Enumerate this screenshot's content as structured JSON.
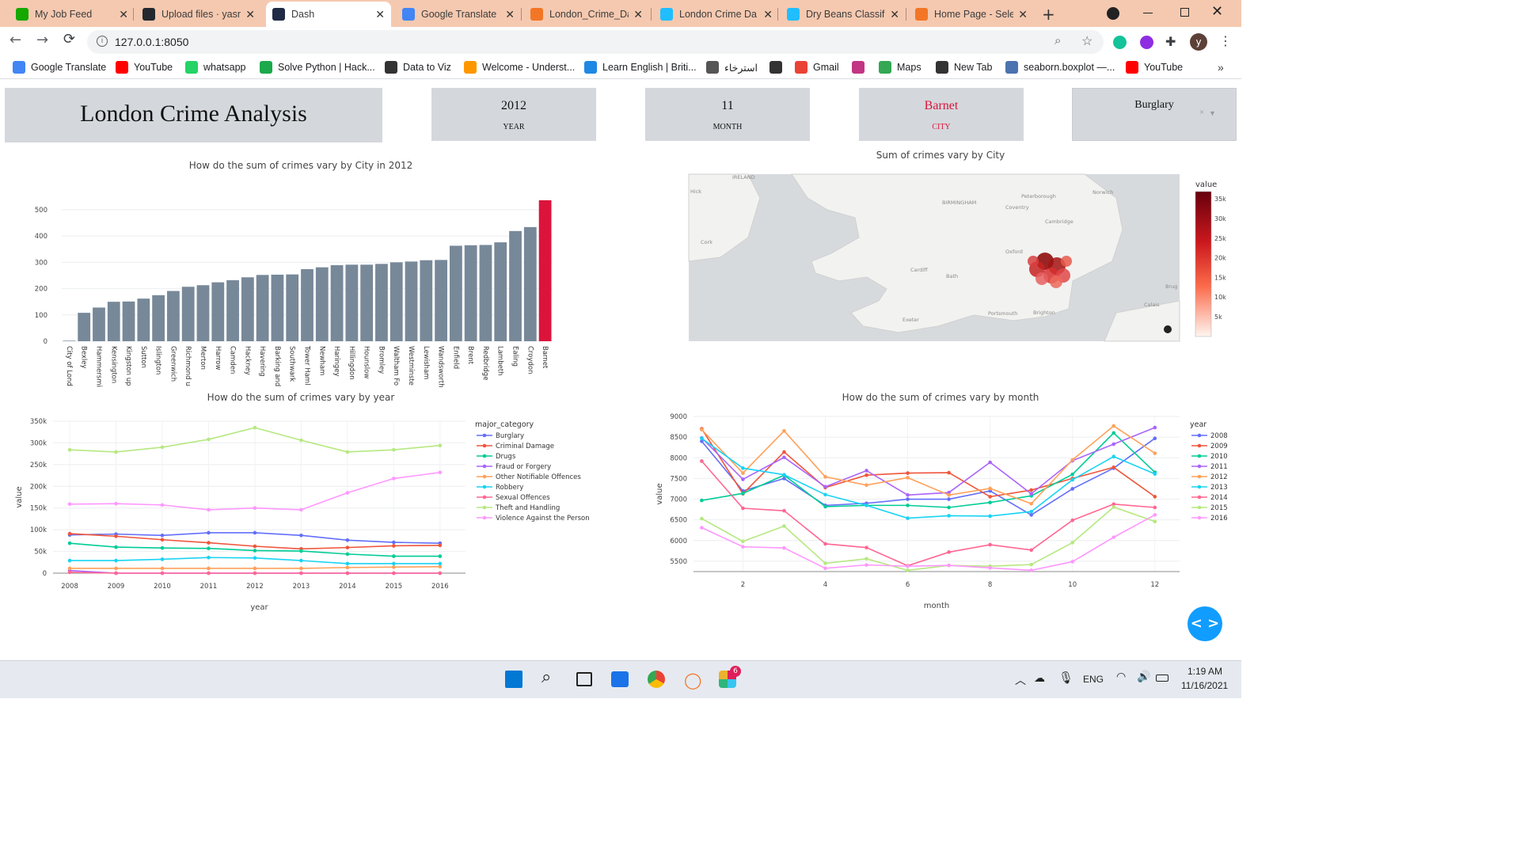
{
  "browser": {
    "tabs": [
      {
        "title": "My Job Feed",
        "icon": "upwork-icon",
        "color": "#14a800"
      },
      {
        "title": "Upload files · yasn",
        "icon": "github-icon",
        "color": "#24292f"
      },
      {
        "title": "Dash",
        "icon": "dash-icon",
        "color": "#1f2a44",
        "active": true
      },
      {
        "title": "Google Translate",
        "icon": "translate-icon",
        "color": "#4285f4"
      },
      {
        "title": "London_Crime_Da",
        "icon": "notebook-icon",
        "color": "#f37626"
      },
      {
        "title": "London Crime Da",
        "icon": "kaggle-icon",
        "color": "#20beff"
      },
      {
        "title": "Dry Beans Classifi",
        "icon": "kaggle-icon",
        "color": "#20beff"
      },
      {
        "title": "Home Page - Sele",
        "icon": "jupyter-icon",
        "color": "#f37626"
      }
    ],
    "url": "127.0.0.1:8050",
    "bookmarks": [
      {
        "label": "Google Translate",
        "color": "#4285f4"
      },
      {
        "label": "YouTube",
        "color": "#ff0000"
      },
      {
        "label": "whatsapp",
        "color": "#25d366"
      },
      {
        "label": "Solve Python | Hack...",
        "color": "#1ba94c"
      },
      {
        "label": "Data to Viz",
        "color": "#333333"
      },
      {
        "label": "Welcome - Underst...",
        "color": "#ff9800"
      },
      {
        "label": "Learn English | Briti...",
        "color": "#1e88e5"
      },
      {
        "label": "استرخاء",
        "color": "#555555"
      },
      {
        "label": "",
        "color": "#333333"
      },
      {
        "label": "Gmail",
        "color": "#ea4335"
      },
      {
        "label": "",
        "color": "#c13584"
      },
      {
        "label": "Maps",
        "color": "#34a853"
      },
      {
        "label": "New Tab",
        "color": "#333333"
      },
      {
        "label": "seaborn.boxplot —...",
        "color": "#4c72b0"
      },
      {
        "label": "YouTube",
        "color": "#ff0000"
      }
    ],
    "avatar_letter": "y"
  },
  "dashboard": {
    "title": "London Crime Analysis",
    "year_value": "2012",
    "year_label": "YEAR",
    "month_value": "11",
    "month_label": "MONTH",
    "city_value": "Barnet",
    "city_label": "CITY",
    "category_selected": "Burglary",
    "accent_color": "#dc143c"
  },
  "charts": {
    "bar_title": "How do the sum of crimes vary by City in 2012",
    "map_title": "Sum of crimes vary by City",
    "year_title": "How do the sum of crimes vary by year",
    "month_title": "How do the sum of crimes vary by month"
  },
  "chart_data": [
    {
      "type": "bar",
      "title": "How do the sum of crimes vary by City in 2012",
      "categories": [
        "City of Lond",
        "Bexley",
        "Hammersmi",
        "Kensington",
        "Kingston up",
        "Sutton",
        "Islington",
        "Greenwich",
        "Richmond u",
        "Merton",
        "Harrow",
        "Camden",
        "Hackney",
        "Havering",
        "Barking and",
        "Southwark",
        "Tower Haml",
        "Newham",
        "Haringey",
        "Hillingdon",
        "Hounslow",
        "Bromley",
        "Waltham Fo",
        "Westminste",
        "Lewisham",
        "Wandsworth",
        "Enfield",
        "Brent",
        "Redbridge",
        "Lambeth",
        "Ealing",
        "Croydon",
        "Barnet"
      ],
      "values": [
        2,
        108,
        128,
        150,
        151,
        162,
        175,
        191,
        207,
        213,
        224,
        232,
        243,
        252,
        253,
        254,
        274,
        281,
        289,
        291,
        291,
        294,
        300,
        303,
        308,
        309,
        363,
        365,
        366,
        376,
        419,
        434,
        536
      ],
      "highlight": "Barnet",
      "yticks": [
        0,
        100,
        200,
        300,
        400,
        500
      ],
      "ylim": [
        0,
        560
      ]
    },
    {
      "type": "line",
      "title": "How do the sum of crimes vary by year",
      "xlabel": "year",
      "ylabel": "value",
      "legend_title": "major_category",
      "x": [
        2008,
        2009,
        2010,
        2011,
        2012,
        2013,
        2014,
        2015,
        2016
      ],
      "yticks": [
        "0",
        "50k",
        "100k",
        "150k",
        "200k",
        "250k",
        "300k",
        "350k"
      ],
      "ylim": [
        0,
        350000
      ],
      "series": [
        {
          "name": "Burglary",
          "color": "#636efa",
          "values": [
            88000,
            90000,
            87000,
            93000,
            93000,
            87000,
            76000,
            71000,
            69000
          ]
        },
        {
          "name": "Criminal Damage",
          "color": "#ef553b",
          "values": [
            91000,
            85000,
            77000,
            70000,
            62000,
            56000,
            59000,
            63000,
            64000
          ]
        },
        {
          "name": "Drugs",
          "color": "#00cc96",
          "values": [
            69000,
            60000,
            58000,
            57000,
            52000,
            51000,
            44000,
            39000,
            39000
          ]
        },
        {
          "name": "Fraud or Forgery",
          "color": "#ab63fa",
          "values": [
            6000,
            0,
            0,
            0,
            0,
            0,
            0,
            0,
            0
          ]
        },
        {
          "name": "Other Notifiable Offences",
          "color": "#ffa15a",
          "values": [
            11000,
            11000,
            11000,
            11000,
            11000,
            11000,
            13000,
            14000,
            15000
          ]
        },
        {
          "name": "Robbery",
          "color": "#19d3f3",
          "values": [
            29000,
            29000,
            32000,
            36000,
            35000,
            29000,
            22000,
            22000,
            22000
          ]
        },
        {
          "name": "Sexual Offences",
          "color": "#ff6692",
          "values": [
            2000,
            0,
            0,
            0,
            0,
            0,
            0,
            0,
            0
          ]
        },
        {
          "name": "Theft and Handling",
          "color": "#b6e880",
          "values": [
            284000,
            279000,
            290000,
            308000,
            335000,
            306000,
            279000,
            284000,
            294000
          ]
        },
        {
          "name": "Violence Against the Person",
          "color": "#ff97ff",
          "values": [
            159000,
            160000,
            157000,
            146000,
            150000,
            146000,
            185000,
            218000,
            232000
          ]
        }
      ]
    },
    {
      "type": "line",
      "title": "How do the sum of crimes vary by month",
      "xlabel": "month",
      "ylabel": "value",
      "legend_title": "year",
      "x": [
        1,
        2,
        3,
        4,
        5,
        6,
        7,
        8,
        9,
        10,
        11,
        12
      ],
      "xticks": [
        2,
        4,
        6,
        8,
        10,
        12
      ],
      "yticks": [
        5500,
        6000,
        6500,
        7000,
        7500,
        8000,
        8500,
        9000
      ],
      "ylim": [
        5250,
        9000
      ],
      "series": [
        {
          "name": "2008",
          "color": "#636efa",
          "values": [
            8400,
            7200,
            7500,
            6850,
            6900,
            7000,
            7000,
            7200,
            6620,
            7250,
            7750,
            8470
          ]
        },
        {
          "name": "2009",
          "color": "#ef553b",
          "values": [
            8700,
            7130,
            8140,
            7280,
            7580,
            7630,
            7640,
            7060,
            7220,
            7500,
            7770,
            7060
          ]
        },
        {
          "name": "2010",
          "color": "#00cc96",
          "values": [
            6970,
            7140,
            7580,
            6820,
            6850,
            6850,
            6800,
            6920,
            7080,
            7600,
            8600,
            7650
          ]
        },
        {
          "name": "2011",
          "color": "#ab63fa",
          "values": [
            8480,
            7480,
            8010,
            7300,
            7690,
            7100,
            7160,
            7890,
            7130,
            7930,
            8330,
            8730
          ]
        },
        {
          "name": "2012",
          "color": "#ffa15a",
          "values": [
            8680,
            7630,
            8650,
            7540,
            7340,
            7520,
            7100,
            7260,
            6890,
            7950,
            8770,
            8110
          ]
        },
        {
          "name": "2013",
          "color": "#19d3f3",
          "values": [
            8470,
            7750,
            7590,
            7110,
            6850,
            6540,
            6600,
            6590,
            6700,
            7470,
            8030,
            7610
          ]
        },
        {
          "name": "2014",
          "color": "#ff6692",
          "values": [
            7920,
            6780,
            6720,
            5920,
            5830,
            5390,
            5720,
            5900,
            5770,
            6490,
            6880,
            6800
          ]
        },
        {
          "name": "2015",
          "color": "#b6e880",
          "values": [
            6530,
            5980,
            6350,
            5450,
            5560,
            5280,
            5400,
            5380,
            5420,
            5950,
            6810,
            6460
          ]
        },
        {
          "name": "2016",
          "color": "#ff97ff",
          "values": [
            6310,
            5850,
            5820,
            5330,
            5410,
            5380,
            5400,
            5340,
            5280,
            5490,
            6080,
            6620
          ]
        }
      ]
    },
    {
      "type": "heatmap",
      "title": "Sum of crimes vary by City",
      "legend_title": "value",
      "colorbar_ticks": [
        "5k",
        "10k",
        "15k",
        "20k",
        "25k",
        "30k",
        "35k"
      ],
      "map_labels": [
        "IRELAND",
        "BIRMINGHAM",
        "Coventry",
        "Cambridge",
        "Peterborough",
        "Norwich",
        "Oxford",
        "Cardiff",
        "Bath",
        "Cork",
        "Exeter",
        "Portsmouth",
        "Brighton",
        "Calais",
        "Brug",
        "Hick"
      ]
    }
  ],
  "system": {
    "lang": "ENG",
    "time": "1:19 AM",
    "date": "11/16/2021",
    "slack_badge": "6"
  }
}
